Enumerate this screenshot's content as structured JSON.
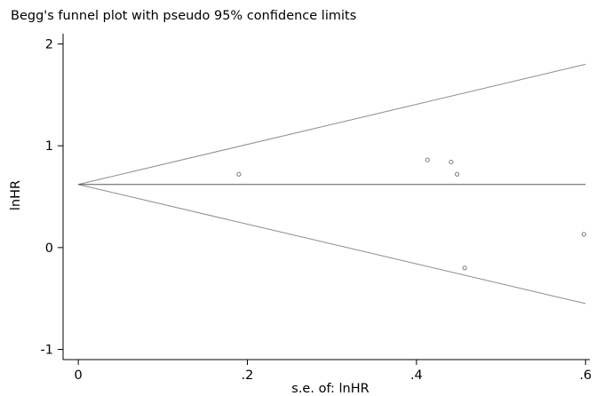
{
  "chart_data": {
    "type": "scatter",
    "title": "Begg's funnel plot with pseudo 95% confidence limits",
    "xlabel": "s.e. of: lnHR",
    "ylabel": "lnHR",
    "xlim": [
      -0.018,
      0.605
    ],
    "ylim": [
      -1.1,
      2.1
    ],
    "x_ticks": [
      {
        "value": 0,
        "label": "0"
      },
      {
        "value": 0.2,
        "label": ".2"
      },
      {
        "value": 0.4,
        "label": ".4"
      },
      {
        "value": 0.6,
        "label": ".6"
      }
    ],
    "y_ticks": [
      {
        "value": -1,
        "label": "-1"
      },
      {
        "value": 0,
        "label": "0"
      },
      {
        "value": 1,
        "label": "1"
      },
      {
        "value": 2,
        "label": "2"
      }
    ],
    "grid": false,
    "legend": "none",
    "pooled_estimate": 0.62,
    "pooled_line_x": [
      0,
      0.6
    ],
    "limits": {
      "upper": [
        [
          0,
          0.62
        ],
        [
          0.6,
          1.8
        ]
      ],
      "lower": [
        [
          0,
          0.62
        ],
        [
          0.6,
          -0.55
        ]
      ]
    },
    "points": [
      {
        "x": 0.19,
        "y": 0.72
      },
      {
        "x": 0.413,
        "y": 0.86
      },
      {
        "x": 0.441,
        "y": 0.84
      },
      {
        "x": 0.448,
        "y": 0.72
      },
      {
        "x": 0.457,
        "y": -0.2
      },
      {
        "x": 0.598,
        "y": 0.13
      }
    ],
    "colors": {
      "axis": "#000000",
      "limit_lines": "#8c8c8c",
      "pooled_line": "#595959",
      "point_stroke": "#6e6e6e"
    }
  }
}
